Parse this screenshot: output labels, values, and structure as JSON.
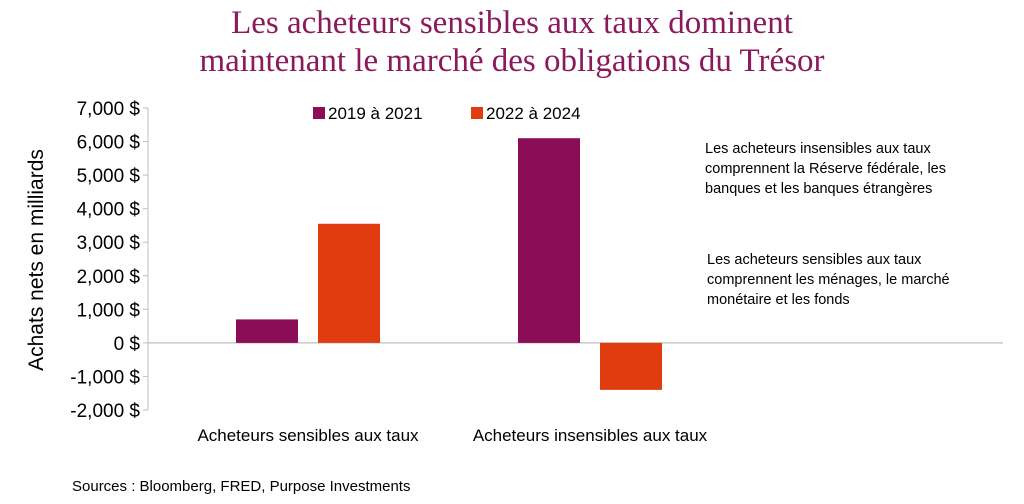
{
  "title_lines": [
    "Les acheteurs sensibles aux taux dominent",
    "maintenant le marché des obligations du Trésor"
  ],
  "sources": "Sources : Bloomberg, FRED, Purpose Investments",
  "notes": [
    "Les acheteurs insensibles aux taux comprennent la Réserve fédérale, les banques et les banques étrangères",
    "Les acheteurs sensibles aux taux comprennent les ménages, le marché monétaire et les fonds"
  ],
  "chart_data": {
    "type": "bar",
    "title": "Les acheteurs sensibles aux taux dominent maintenant le marché des obligations du Trésor",
    "ylabel": "Achats nets en milliards",
    "xlabel": "",
    "categories": [
      "Acheteurs sensibles aux taux",
      "Acheteurs insensibles aux taux"
    ],
    "series": [
      {
        "name": "2019 à 2021",
        "color": "#8b0d57",
        "values": [
          700,
          6100
        ]
      },
      {
        "name": "2022 à 2024",
        "color": "#e03c10",
        "values": [
          3550,
          -1400
        ]
      }
    ],
    "ylim": [
      -2000,
      7000
    ],
    "yticks": [
      7000,
      6000,
      5000,
      4000,
      3000,
      2000,
      1000,
      0,
      -1000,
      -2000
    ],
    "ytick_labels": [
      "7,000 $",
      "6,000 $",
      "5,000 $",
      "4,000 $",
      "3,000 $",
      "2,000 $",
      "1,000 $",
      "0 $",
      "-1,000 $",
      "-2,000 $"
    ],
    "legend_position": "top-center",
    "grid": false
  }
}
